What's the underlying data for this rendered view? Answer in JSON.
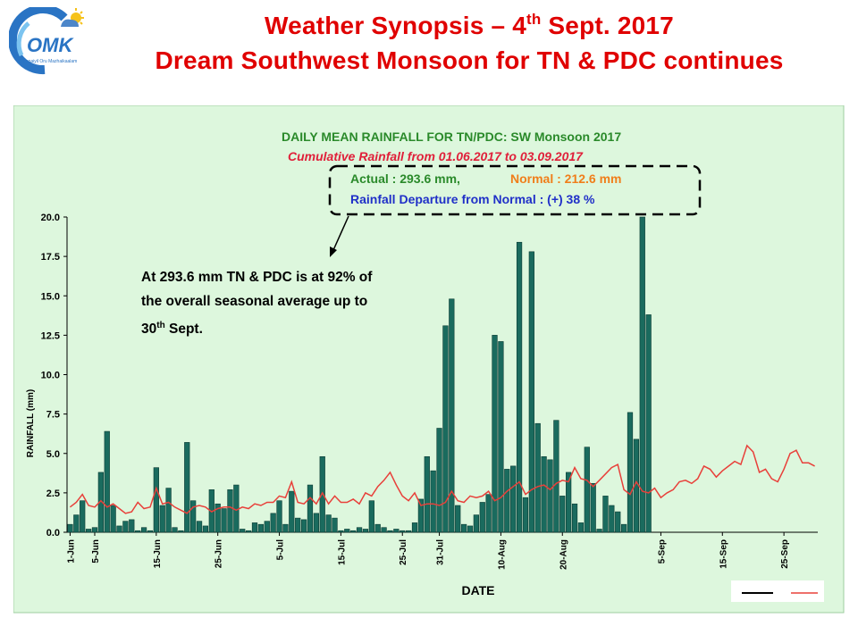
{
  "header": {
    "title_line1_pre": "Weather Synopsis – 4",
    "title_line1_sup": "th",
    "title_line1_post": " Sept. 2017",
    "title_line2": "Dream Southwest Monsoon for TN & PDC continues",
    "logo_text": "OMK",
    "logo_subtext": "Chennaiyil Oru Mazhaikaalam"
  },
  "callout": {
    "pre": "At 293.6 mm TN & PDC is at 92% of the overall seasonal average up to 30",
    "sup": "th",
    "post": " Sept."
  },
  "chart_data": {
    "type": "bar",
    "title": "DAILY MEAN RAINFALL FOR TN/PDC: SW Monsoon  2017",
    "subtitle": "Cumulative Rainfall  from 01.06.2017 to  03.09.2017",
    "actual_label": "Actual : 293.6 mm,",
    "normal_label": "Normal : 212.6 mm",
    "departure_label": "Rainfall Departure from Normal : (+) 38 %",
    "xlabel": "DATE",
    "ylabel": "RAINFALL (mm)",
    "ylim": [
      0,
      20
    ],
    "yticks": [
      "0.0",
      "2.5",
      "5.0",
      "7.5",
      "10.0",
      "12.5",
      "15.0",
      "17.5",
      "20.0"
    ],
    "xtick_labels": [
      "1-Jun",
      "5-Jun",
      "15-Jun",
      "25-Jun",
      "5-Jul",
      "15-Jul",
      "25-Jul",
      "31-Jul",
      "10-Aug",
      "20-Aug",
      "5-Sep",
      "15-Sep",
      "25-Sep"
    ],
    "xtick_days": [
      0,
      4,
      14,
      24,
      34,
      44,
      54,
      60,
      70,
      80,
      96,
      106,
      116
    ],
    "grid": false,
    "legend": "bottom-right",
    "colors": {
      "bar": "#1a6b5e",
      "normal": "#e8403a",
      "actual_line": "#000000",
      "plot_bg": "#ddf7dd"
    },
    "series": [
      {
        "kind": "bar",
        "values": [
          0.5,
          1.1,
          2.0,
          0.2,
          0.3,
          3.8,
          6.4,
          1.7,
          0.4,
          0.7,
          0.8,
          0.1,
          0.3,
          0.1,
          4.1,
          1.7,
          2.8,
          0.3,
          0.1,
          5.7,
          2.0,
          0.7,
          0.4,
          2.7,
          1.8,
          1.5,
          2.7,
          3.0,
          0.2,
          0.1,
          0.6,
          0.5,
          0.7,
          1.2,
          2.0,
          0.5,
          2.6,
          0.9,
          0.8,
          3.0,
          1.2,
          4.8,
          1.1,
          0.9,
          0.1,
          0.2,
          0.1,
          0.3,
          0.2,
          2.0,
          0.5,
          0.3,
          0.1,
          0.2,
          0.1,
          0.1,
          0.6,
          2.1,
          4.8,
          3.9,
          6.6,
          13.1,
          14.8,
          1.7,
          0.5,
          0.4,
          1.1,
          1.9,
          2.4,
          12.5,
          12.1,
          4.0,
          4.2,
          18.4,
          2.2,
          17.8,
          6.9,
          4.8,
          4.6,
          7.1,
          2.3,
          3.8,
          1.8,
          0.6,
          5.4,
          3.1,
          0.2,
          2.3,
          1.7,
          1.3,
          0.5,
          7.6,
          5.9,
          20.2,
          13.8
        ]
      },
      {
        "kind": "line",
        "name": "",
        "values": [
          1.6,
          1.9,
          2.4,
          1.7,
          1.6,
          2.0,
          1.6,
          1.8,
          1.5,
          1.2,
          1.3,
          1.9,
          1.5,
          1.6,
          2.8,
          1.8,
          1.9,
          1.6,
          1.4,
          1.2,
          1.6,
          1.7,
          1.6,
          1.3,
          1.5,
          1.6,
          1.6,
          1.4,
          1.6,
          1.5,
          1.8,
          1.7,
          1.9,
          1.9,
          2.3,
          2.2,
          3.2,
          1.9,
          1.8,
          2.2,
          1.8,
          2.5,
          1.8,
          2.3,
          1.9,
          1.9,
          2.1,
          1.8,
          2.5,
          2.3,
          2.9,
          3.3,
          3.8,
          3.0,
          2.3,
          2.0,
          2.5,
          1.7,
          1.8,
          1.8,
          1.7,
          1.9,
          2.6,
          2.0,
          1.9,
          2.3,
          2.2,
          2.3,
          2.6,
          2.0,
          2.2,
          2.6,
          2.9,
          3.2,
          2.4,
          2.7,
          2.9,
          3.0,
          2.7,
          3.1,
          3.3,
          3.2,
          4.1,
          3.4,
          3.3,
          2.9,
          3.3,
          3.7,
          4.1,
          4.3,
          2.7,
          2.4,
          3.2,
          2.6,
          2.5,
          2.8,
          2.2,
          2.5,
          2.7,
          3.2,
          3.3,
          3.1,
          3.4,
          4.2,
          4.0,
          3.5,
          3.9,
          4.2,
          4.5,
          4.3,
          5.5,
          5.1,
          3.8,
          4.0,
          3.4,
          3.2,
          4.0,
          5.0,
          5.2,
          4.4,
          4.4,
          4.2
        ]
      }
    ]
  }
}
